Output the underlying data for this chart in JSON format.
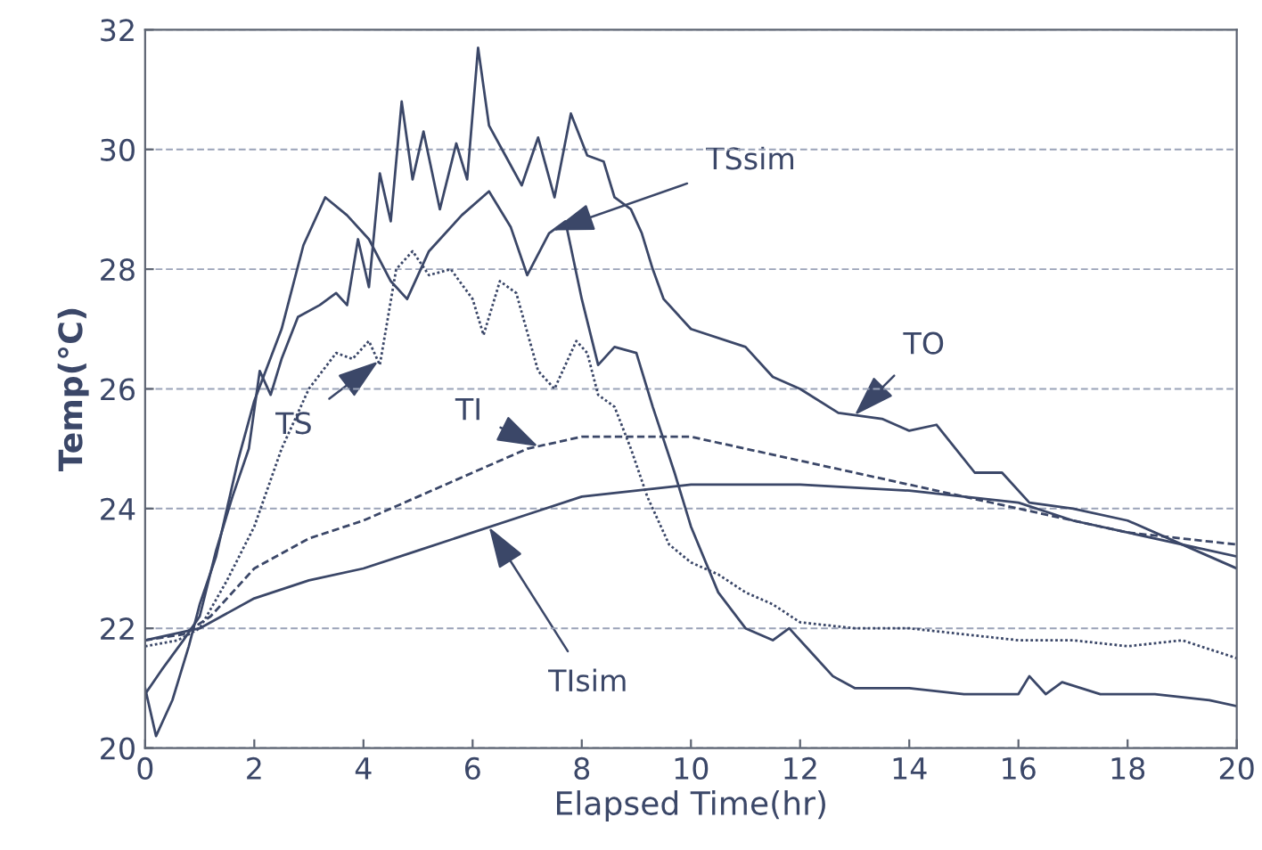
{
  "chart_data": {
    "type": "line",
    "xlabel": "Elapsed Time(hr)",
    "ylabel": "Temp(°C)",
    "xlim": [
      0,
      20
    ],
    "ylim": [
      20,
      32
    ],
    "xticks": [
      0,
      2,
      4,
      6,
      8,
      10,
      12,
      14,
      16,
      18,
      20
    ],
    "yticks": [
      20,
      22,
      24,
      26,
      28,
      30,
      32
    ],
    "grid": "y",
    "legend": false,
    "series": [
      {
        "name": "TS",
        "color": "#3b4768",
        "line_style": "dotted",
        "x": [
          0,
          0.6,
          1.0,
          1.5,
          2.0,
          2.5,
          3.0,
          3.5,
          3.8,
          4.1,
          4.3,
          4.6,
          4.9,
          5.2,
          5.6,
          6.0,
          6.2,
          6.5,
          6.8,
          7.2,
          7.5,
          7.9,
          8.1,
          8.3,
          8.6,
          8.9,
          9.2,
          9.6,
          10,
          10.5,
          11,
          11.5,
          12,
          13,
          14,
          15,
          16,
          17,
          18,
          19,
          20
        ],
        "values": [
          21.7,
          21.8,
          22.0,
          22.8,
          23.7,
          25.0,
          26.0,
          26.6,
          26.5,
          26.8,
          26.4,
          28.0,
          28.3,
          27.9,
          28.0,
          27.5,
          26.9,
          27.8,
          27.6,
          26.3,
          26.0,
          26.8,
          26.6,
          25.9,
          25.7,
          25.0,
          24.2,
          23.4,
          23.1,
          22.9,
          22.6,
          22.4,
          22.1,
          22.0,
          22.0,
          21.9,
          21.8,
          21.8,
          21.7,
          21.8,
          21.5
        ]
      },
      {
        "name": "TSsim",
        "color": "#3b4768",
        "line_style": "solid",
        "x": [
          0,
          0.2,
          0.5,
          0.8,
          1.0,
          1.3,
          1.7,
          2.0,
          2.5,
          2.9,
          3.3,
          3.7,
          4.1,
          4.5,
          4.8,
          5.2,
          5.8,
          6.3,
          6.7,
          7.0,
          7.4,
          7.7,
          8.0,
          8.3,
          8.6,
          9.0,
          9.3,
          9.7,
          10.0,
          10.5,
          11.0,
          11.5,
          11.8,
          12.2,
          12.6,
          13,
          14,
          15,
          16,
          16.2,
          16.5,
          16.8,
          17.5,
          18.5,
          19.5,
          20
        ],
        "values": [
          21.0,
          20.2,
          20.8,
          21.7,
          22.4,
          23.2,
          24.8,
          25.8,
          27.0,
          28.4,
          29.2,
          28.9,
          28.5,
          27.8,
          27.5,
          28.3,
          28.9,
          29.3,
          28.7,
          27.9,
          28.6,
          28.8,
          27.5,
          26.4,
          26.7,
          26.6,
          25.7,
          24.6,
          23.7,
          22.6,
          22.0,
          21.8,
          22.0,
          21.6,
          21.2,
          21.0,
          21.0,
          20.9,
          20.9,
          21.2,
          20.9,
          21.1,
          20.9,
          20.9,
          20.8,
          20.7
        ]
      },
      {
        "name": "TO",
        "color": "#3b4768",
        "line_style": "solid",
        "x": [
          0,
          0.3,
          0.7,
          1.0,
          1.3,
          1.6,
          1.9,
          2.1,
          2.3,
          2.5,
          2.8,
          3.2,
          3.5,
          3.7,
          3.9,
          4.1,
          4.3,
          4.5,
          4.7,
          4.9,
          5.1,
          5.4,
          5.7,
          5.9,
          6.1,
          6.3,
          6.6,
          6.9,
          7.2,
          7.5,
          7.8,
          8.1,
          8.4,
          8.6,
          8.9,
          9.1,
          9.3,
          9.5,
          10,
          11,
          11.5,
          12,
          12.7,
          13.5,
          14,
          14.5,
          15.2,
          15.7,
          16.2,
          17,
          18,
          19,
          20
        ],
        "values": [
          20.9,
          21.3,
          21.8,
          22.2,
          23.3,
          24.2,
          25.0,
          26.3,
          25.9,
          26.5,
          27.2,
          27.4,
          27.6,
          27.4,
          28.5,
          27.7,
          29.6,
          28.8,
          30.8,
          29.5,
          30.3,
          29.0,
          30.1,
          29.5,
          31.7,
          30.4,
          29.9,
          29.4,
          30.2,
          29.2,
          30.6,
          29.9,
          29.8,
          29.2,
          29.0,
          28.6,
          28.0,
          27.5,
          27.0,
          26.7,
          26.2,
          26.0,
          25.6,
          25.5,
          25.3,
          25.4,
          24.6,
          24.6,
          24.1,
          24.0,
          23.8,
          23.4,
          23.0
        ]
      },
      {
        "name": "TI",
        "color": "#3b4768",
        "line_style": "dashed",
        "x": [
          0,
          0.7,
          1.2,
          2,
          3,
          4,
          5,
          6,
          7,
          8,
          9,
          10,
          11,
          12,
          13,
          14,
          15,
          16,
          17,
          18,
          19,
          20
        ],
        "values": [
          21.8,
          21.9,
          22.2,
          23.0,
          23.5,
          23.8,
          24.2,
          24.6,
          25.0,
          25.2,
          25.2,
          25.2,
          25.0,
          24.8,
          24.6,
          24.4,
          24.2,
          24.0,
          23.8,
          23.6,
          23.5,
          23.4
        ]
      },
      {
        "name": "TIsim",
        "color": "#3b4768",
        "line_style": "solid",
        "x": [
          0,
          1,
          2,
          3,
          4,
          5,
          6,
          7,
          8,
          9,
          10,
          12,
          14,
          16,
          17,
          18,
          19,
          20
        ],
        "values": [
          21.8,
          22.0,
          22.5,
          22.8,
          23.0,
          23.3,
          23.6,
          23.9,
          24.2,
          24.3,
          24.4,
          24.4,
          24.3,
          24.1,
          23.8,
          23.6,
          23.4,
          23.2
        ]
      }
    ]
  }
}
